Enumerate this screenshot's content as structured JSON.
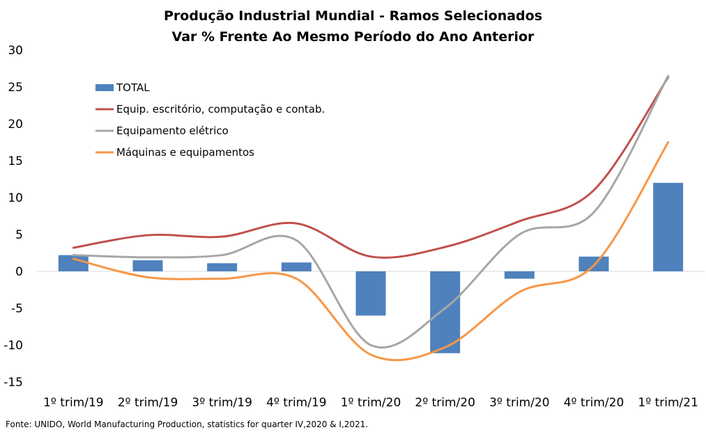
{
  "chart_data": {
    "type": "bar",
    "title": "Produção Industrial Mundial - Ramos Selecionados",
    "subtitle": "Var % Frente Ao Mesmo Período do Ano Anterior",
    "categories": [
      "1º trim/19",
      "2º trim/19",
      "3º trim/19",
      "4º trim/19",
      "1º trim/20",
      "2º trim/20",
      "3º trim/20",
      "4º trim/20",
      "1º trim/21"
    ],
    "ylim": [
      -15,
      30
    ],
    "yticks": [
      -15,
      -10,
      -5,
      0,
      5,
      10,
      15,
      20,
      25,
      30
    ],
    "grid": false,
    "legend_position": "top-left",
    "series": [
      {
        "name": "TOTAL",
        "type": "bar",
        "color": "#4F81BD",
        "values": [
          2.2,
          1.5,
          1.1,
          1.2,
          -6.0,
          -11.1,
          -1.0,
          2.0,
          12.0
        ]
      },
      {
        "name": "Equip. escritório, computação e contab.",
        "type": "line",
        "color": "#C0504D",
        "values": [
          3.2,
          4.9,
          4.7,
          6.5,
          2.0,
          3.3,
          6.8,
          11.0,
          26.3
        ]
      },
      {
        "name": "Equipamento elétrico",
        "type": "line",
        "color": "#A6A6A6",
        "values": [
          2.2,
          1.9,
          2.2,
          4.2,
          -10.0,
          -5.0,
          5.0,
          8.0,
          26.5
        ]
      },
      {
        "name": "Máquinas e equipamentos",
        "type": "line",
        "color": "#F79646",
        "values": [
          1.7,
          -0.8,
          -1.0,
          -1.0,
          -11.3,
          -10.3,
          -2.8,
          0.8,
          17.5
        ]
      }
    ]
  },
  "source": "Fonte: UNIDO, World Manufacturing Production, statistics for quarter IV,2020 & I,2021."
}
